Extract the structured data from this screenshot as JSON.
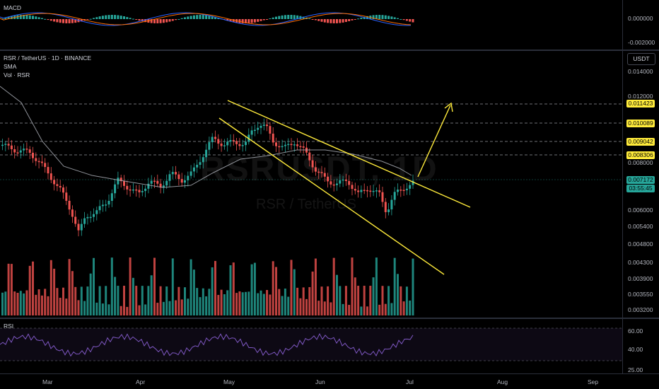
{
  "macd": {
    "title": "MACD",
    "ticks": [
      "0.000000",
      "-0.002000"
    ]
  },
  "main": {
    "symbol": "RSR / TetherUS · 1D · BINANCE",
    "indicator_sma": "SMA",
    "indicator_vol": "Vol · RSR",
    "currency": "USDT",
    "watermark": "RSRUSDT, 1D",
    "watermark_sub": "RSR / TetherUS",
    "ticks": [
      "0.014000",
      "0.012000",
      "0.008000",
      "0.006000",
      "0.005400",
      "0.004800",
      "0.004300",
      "0.003900",
      "0.003550",
      "0.003200"
    ],
    "levels": [
      {
        "value": "0.011423"
      },
      {
        "value": "0.010089"
      },
      {
        "value": "0.009042"
      },
      {
        "value": "0.008306"
      }
    ],
    "last_price": "0.007172",
    "countdown": "03:55:45"
  },
  "rsi": {
    "title": "RSI",
    "ticks": [
      "60.00",
      "40.00",
      "25.00"
    ]
  },
  "time_axis": {
    "months": [
      "Mar",
      "Apr",
      "May",
      "Jun",
      "Jul",
      "Aug",
      "Sep"
    ]
  },
  "colors": {
    "up": "#26a69a",
    "down": "#ef5350",
    "level": "#ffeb3b",
    "sma": "#b2b5be",
    "rsi": "#7e57c2"
  }
}
